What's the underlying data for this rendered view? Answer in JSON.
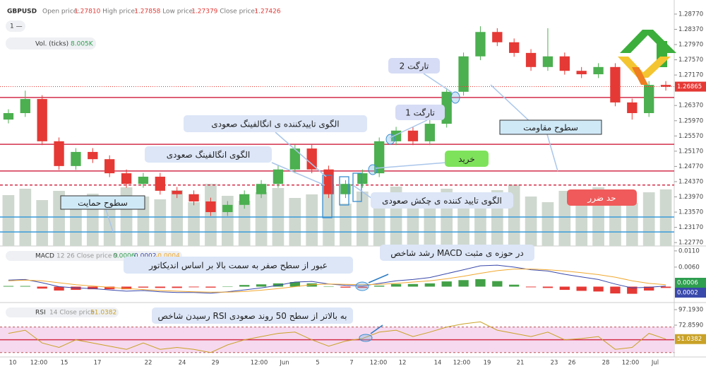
{
  "header": {
    "symbol": "GBPUSD",
    "fields": [
      {
        "label": "Open price:",
        "value": "1.27810"
      },
      {
        "label": "High price:",
        "value": "1.27858"
      },
      {
        "label": "Low price:",
        "value": "1.27379"
      },
      {
        "label": "Close price:",
        "value": "1.27426"
      }
    ],
    "interval": "1 —"
  },
  "annotations": [
    "تارگت 2",
    "تارگت 1",
    "الگوی تاییدکننده ی انگالفینگ صعودی",
    "الگوی انگالفینگ صعودی",
    "خرید",
    "سطوح مقاومت",
    "الگوی تایید کننده ی چکش صعودی",
    "حد ضرر",
    "سطوح حمایت",
    "رشد شاخص MACD در حوزه ی مثبت",
    "عبور از سطح صفر به سمت بالا بر اساس اندیکاتور",
    "رسیدن شاخص RSI به بالاتر از سطح 50 روند صعودی"
  ],
  "time_axis": {
    "labels": [
      "10",
      "12:00",
      "15",
      "17",
      "22",
      "24",
      "29",
      "12:00",
      "Jun",
      "5",
      "7",
      "12:00",
      "12",
      "14",
      "12:00",
      "19",
      "21",
      "23",
      "26",
      "28",
      "12:00",
      "Jul"
    ]
  },
  "chart_data": [
    {
      "type": "candlestick",
      "open": [
        1.26,
        1.2617,
        1.2654,
        1.2543,
        1.2478,
        1.2515,
        1.2496,
        1.2459,
        1.2431,
        1.245,
        1.2413,
        1.2404,
        1.2385,
        1.2357,
        1.2376,
        1.2404,
        1.2431,
        1.2469,
        1.2524,
        1.2469,
        1.2404,
        1.2431,
        1.2459,
        1.2543,
        1.2571,
        1.2543,
        1.2589,
        1.2673,
        1.2766,
        1.283,
        1.2803,
        1.2775,
        1.2738,
        1.2766,
        1.2728,
        1.2719,
        1.2738,
        1.2645,
        1.2617,
        1.2691
      ],
      "high": [
        1.2627,
        1.2676,
        1.2664,
        1.2553,
        1.2525,
        1.2525,
        1.2506,
        1.2469,
        1.246,
        1.246,
        1.2423,
        1.2414,
        1.2395,
        1.2386,
        1.2414,
        1.2441,
        1.2479,
        1.2534,
        1.2534,
        1.2479,
        1.2441,
        1.2469,
        1.2553,
        1.2581,
        1.2581,
        1.2599,
        1.2683,
        1.2776,
        1.2845,
        1.284,
        1.2813,
        1.2785,
        1.284,
        1.2776,
        1.2738,
        1.2748,
        1.2748,
        1.2655,
        1.2701,
        1.2701
      ],
      "low": [
        1.259,
        1.2607,
        1.2533,
        1.2468,
        1.2468,
        1.2486,
        1.2449,
        1.2421,
        1.2421,
        1.2403,
        1.2394,
        1.2375,
        1.2347,
        1.2347,
        1.2366,
        1.2394,
        1.2421,
        1.2459,
        1.2459,
        1.2394,
        1.2394,
        1.2421,
        1.2449,
        1.2533,
        1.2533,
        1.2533,
        1.2579,
        1.2663,
        1.2756,
        1.2793,
        1.2765,
        1.2728,
        1.2728,
        1.2718,
        1.2709,
        1.2709,
        1.2635,
        1.26,
        1.2607,
        1.2676
      ],
      "close": [
        1.2617,
        1.2654,
        1.2543,
        1.2478,
        1.2515,
        1.2496,
        1.2459,
        1.2431,
        1.245,
        1.2413,
        1.2404,
        1.2385,
        1.2357,
        1.2376,
        1.2404,
        1.2431,
        1.2469,
        1.2524,
        1.2469,
        1.2404,
        1.2431,
        1.2459,
        1.2543,
        1.2571,
        1.2543,
        1.2589,
        1.2673,
        1.2766,
        1.283,
        1.2803,
        1.2775,
        1.2738,
        1.2766,
        1.2728,
        1.2719,
        1.2738,
        1.2645,
        1.2617,
        1.2691,
        1.2686
      ],
      "up_color": "#4caf50",
      "down_color": "#e53935",
      "ylim": [
        1.2268,
        1.2914
      ],
      "yticks": [
        {
          "value": 1.2877,
          "label": "1.28770"
        },
        {
          "value": 1.2837,
          "label": "1.28370"
        },
        {
          "value": 1.2797,
          "label": "1.27970"
        },
        {
          "value": 1.2757,
          "label": "1.27570"
        },
        {
          "value": 1.2717,
          "label": "1.27170"
        },
        {
          "value": 1.2637,
          "label": "1.26370"
        },
        {
          "value": 1.2597,
          "label": "1.25970"
        },
        {
          "value": 1.2557,
          "label": "1.25570"
        },
        {
          "value": 1.2517,
          "label": "1.25170"
        },
        {
          "value": 1.2477,
          "label": "1.24770"
        },
        {
          "value": 1.2437,
          "label": "1.24370"
        },
        {
          "value": 1.2397,
          "label": "1.23970"
        },
        {
          "value": 1.2357,
          "label": "1.23570"
        },
        {
          "value": 1.2317,
          "label": "1.23170"
        },
        {
          "value": 1.2277,
          "label": "1.22770"
        }
      ],
      "last_price": 1.26865,
      "last_price_color": "#e53935",
      "levels": [
        {
          "value": 1.2658,
          "color": "#d32f4a",
          "style": "solid"
        },
        {
          "value": 1.2535,
          "color": "#d32f4a",
          "style": "solid"
        },
        {
          "value": 1.2465,
          "color": "#d32f4a",
          "style": "solid"
        },
        {
          "value": 1.2428,
          "color": "#d32f4a",
          "style": "dashed"
        },
        {
          "value": 1.2344,
          "color": "#3a9ad9",
          "style": "solid"
        },
        {
          "value": 1.2305,
          "color": "#3a9ad9",
          "style": "solid"
        }
      ],
      "volume": {
        "name": "Vol. (ticks)",
        "value_label": "8.005K",
        "color": "#cfd8cf",
        "ylim": [
          0,
          12000
        ],
        "values": [
          7200,
          8100,
          6500,
          7800,
          6900,
          7400,
          6100,
          8300,
          7000,
          6600,
          7900,
          6200,
          8800,
          7100,
          6400,
          7600,
          8200,
          6800,
          7300,
          8500,
          6000,
          7700,
          6900,
          8400,
          7200,
          6300,
          8100,
          7500,
          6600,
          7900,
          8700,
          7000,
          6200,
          7800,
          6900,
          8300,
          7400,
          6100,
          7600,
          8005
        ]
      }
    },
    {
      "type": "macd",
      "name": "MACD",
      "params": "12 26 Close price 9",
      "legend_values": [
        "0.0006",
        "0.0002",
        "-0.0004"
      ],
      "ylim": [
        -0.0049,
        0.0125
      ],
      "yticks": [
        {
          "value": 0.011,
          "label": "0.0110"
        },
        {
          "value": 0.006,
          "label": "0.0060"
        }
      ],
      "series": [
        {
          "color": "#3949ab",
          "values": [
            0.002,
            0.0022,
            0.0012,
            0.0,
            -0.0004,
            -0.0006,
            -0.001,
            -0.0014,
            -0.0012,
            -0.0016,
            -0.0018,
            -0.0018,
            -0.002,
            -0.0016,
            -0.001,
            -0.0004,
            0.0004,
            0.0014,
            0.0016,
            0.0008,
            0.0004,
            0.0002,
            0.001,
            0.0018,
            0.0022,
            0.0028,
            0.004,
            0.0052,
            0.0064,
            0.0066,
            0.006,
            0.0052,
            0.0048,
            0.0038,
            0.003,
            0.0022,
            0.0008,
            -0.0004,
            -0.0002,
            0.0002
          ],
          "last_label": "0.0002"
        },
        {
          "color": "#f0a830",
          "values": [
            0.0018,
            0.002,
            0.0018,
            0.0012,
            0.0006,
            0.0002,
            -0.0002,
            -0.0006,
            -0.0009,
            -0.0012,
            -0.0014,
            -0.0016,
            -0.0017,
            -0.0017,
            -0.0015,
            -0.0011,
            -0.0006,
            0.0,
            0.0006,
            0.0008,
            0.0007,
            0.0006,
            0.0007,
            0.001,
            0.0014,
            0.0018,
            0.0024,
            0.0032,
            0.0041,
            0.0049,
            0.0054,
            0.0054,
            0.0052,
            0.0048,
            0.0043,
            0.0037,
            0.0029,
            0.0018,
            0.001,
            0.0006
          ],
          "last_label": "0.0006",
          "label_color": "#2e9e4f"
        }
      ],
      "histogram": {
        "positive_color": "#43a047",
        "negative_color": "#e53935",
        "values": [
          0.0002,
          0.0002,
          -0.0006,
          -0.0012,
          -0.001,
          -0.0008,
          -0.0008,
          -0.0008,
          -0.0003,
          -0.0004,
          -0.0004,
          -0.0002,
          -0.0003,
          0.0001,
          0.0005,
          0.0007,
          0.001,
          0.0014,
          0.001,
          0.0,
          -0.0003,
          -0.0004,
          0.0003,
          0.0008,
          0.0008,
          0.001,
          0.0016,
          0.002,
          0.0023,
          0.0017,
          0.0006,
          -0.0002,
          -0.0004,
          -0.001,
          -0.0013,
          -0.0015,
          -0.0021,
          -0.0022,
          -0.0012,
          -0.0004
        ]
      }
    },
    {
      "type": "rsi",
      "name": "RSI",
      "params": "14 Close price",
      "legend_value": "51.0382",
      "ylim": [
        23.08,
        108.25
      ],
      "yticks": [
        {
          "value": 97.193,
          "label": "97.1930"
        },
        {
          "value": 72.859,
          "label": "72.8590"
        }
      ],
      "band": [
        30,
        70
      ],
      "band_color": "#f6d9ef",
      "midline": 50,
      "midline_color": "#d32f4a",
      "color": "#c9a227",
      "values": [
        60,
        65,
        45,
        38,
        50,
        45,
        40,
        35,
        45,
        35,
        38,
        35,
        30,
        42,
        50,
        55,
        60,
        62,
        50,
        40,
        48,
        52,
        62,
        65,
        55,
        62,
        70,
        75,
        78,
        65,
        60,
        55,
        62,
        50,
        52,
        55,
        35,
        38,
        60,
        51.0382
      ],
      "last_label": "51.0382"
    }
  ]
}
